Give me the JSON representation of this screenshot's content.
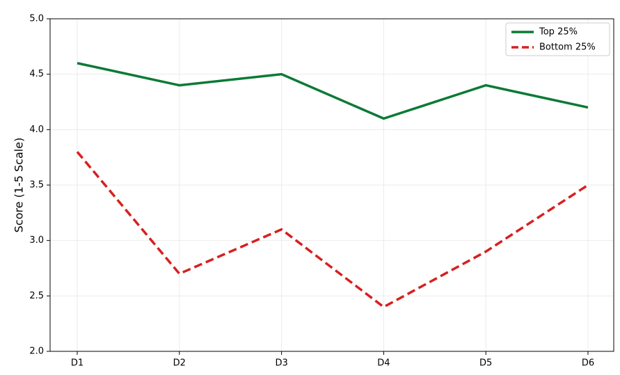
{
  "chart_data": {
    "type": "line",
    "y_label": "Score (1-5 Scale)",
    "categories": [
      "D1",
      "D2",
      "D3",
      "D4",
      "D5",
      "D6"
    ],
    "series": [
      {
        "name": "Top 25%",
        "color": "#0b7a35",
        "linestyle": "solid",
        "values": [
          4.6,
          4.4,
          4.5,
          4.1,
          4.4,
          4.2
        ]
      },
      {
        "name": "Bottom 25%",
        "color": "#d62020",
        "linestyle": "dashed",
        "values": [
          3.8,
          2.7,
          3.1,
          2.4,
          2.9,
          3.5
        ]
      }
    ],
    "ylim": [
      2,
      5
    ],
    "yticks": [
      {
        "value": 2,
        "label": "2.0"
      },
      2.5,
      {
        "value": 3,
        "label": "3.0"
      },
      3.5,
      {
        "value": 4,
        "label": "4.0"
      },
      4.5,
      {
        "value": 5,
        "label": "5.0"
      }
    ],
    "grid": true,
    "legend": "upper right"
  }
}
